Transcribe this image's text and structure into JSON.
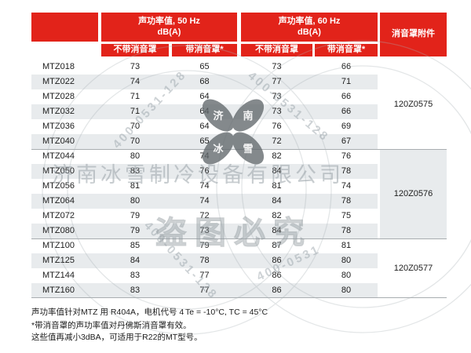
{
  "colors": {
    "header_red": "#E2231A",
    "row_stripe": "#E8EBED",
    "separator": "#A8ADB0",
    "text": "#1C1C1C",
    "watermark_gray": "#9BA4AA",
    "logo_gray": "#62686C"
  },
  "table": {
    "header": {
      "hz50_line1": "声功率值, 50 Hz",
      "hz50_line2": "dB(A)",
      "hz60_line1": "声功率值, 60 Hz",
      "hz60_line2": "dB(A)",
      "accessory": "消音罩附件",
      "sub_without": "不带消音罩",
      "sub_with": "带消音罩*"
    },
    "groups": [
      {
        "accessory_code": "120Z0575",
        "rows": [
          {
            "model": "MTZ018",
            "values": [
              73,
              65,
              73,
              66
            ]
          },
          {
            "model": "MTZ022",
            "values": [
              74,
              68,
              77,
              71
            ]
          },
          {
            "model": "MTZ028",
            "values": [
              71,
              64,
              73,
              66
            ]
          },
          {
            "model": "MTZ032",
            "values": [
              71,
              64,
              73,
              66
            ]
          },
          {
            "model": "MTZ036",
            "values": [
              70,
              64,
              76,
              69
            ]
          },
          {
            "model": "MTZ040",
            "values": [
              70,
              65,
              72,
              67
            ]
          }
        ]
      },
      {
        "accessory_code": "120Z0576",
        "rows": [
          {
            "model": "MTZ044",
            "values": [
              80,
              74,
              82,
              76
            ]
          },
          {
            "model": "MTZ050",
            "values": [
              83,
              76,
              84,
              78
            ]
          },
          {
            "model": "MTZ056",
            "values": [
              81,
              74,
              81,
              74
            ]
          },
          {
            "model": "MTZ064",
            "values": [
              80,
              74,
              84,
              78
            ]
          },
          {
            "model": "MTZ072",
            "values": [
              79,
              72,
              82,
              75
            ]
          },
          {
            "model": "MTZ080",
            "values": [
              79,
              73,
              84,
              78
            ]
          }
        ]
      },
      {
        "accessory_code": "120Z0577",
        "rows": [
          {
            "model": "MTZ100",
            "values": [
              85,
              79,
              87,
              81
            ]
          },
          {
            "model": "MTZ125",
            "values": [
              84,
              78,
              86,
              80
            ]
          },
          {
            "model": "MTZ144",
            "values": [
              83,
              77,
              86,
              80
            ]
          },
          {
            "model": "MTZ160",
            "values": [
              83,
              77,
              86,
              80
            ]
          }
        ]
      }
    ]
  },
  "footnotes": {
    "line1": "声功率值针对MTZ 用 R404A，电机代号 4",
    "conditions": "Te = -10°C, TC = 45°C",
    "line2": "*带消音罩的声功率值对丹佛斯消音罩有效。",
    "line3": "这些值再减小3dBA，可适用于R22的MT型号。"
  },
  "watermark": {
    "company": "济南冰雪制冷设备有限公司",
    "warning": "盗图必究",
    "phone": "400-0531-128",
    "phone_short": "400-0531",
    "logo_chars": [
      "济",
      "南",
      "冰",
      "雪"
    ]
  }
}
